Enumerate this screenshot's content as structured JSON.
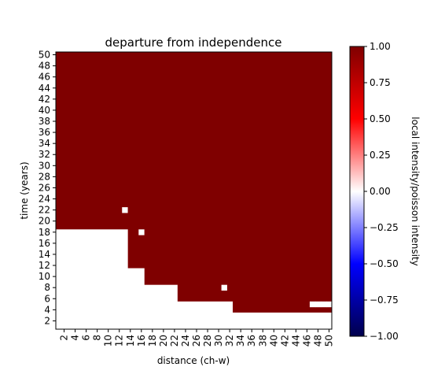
{
  "chart_data": {
    "type": "heatmap",
    "title": "departure from independence",
    "xlabel": "distance (ch-w)",
    "ylabel": "time (years)",
    "x_ticks": [
      2,
      4,
      6,
      8,
      10,
      12,
      14,
      16,
      18,
      20,
      22,
      24,
      26,
      28,
      30,
      32,
      34,
      36,
      38,
      40,
      42,
      44,
      46,
      48,
      50
    ],
    "y_ticks": [
      2,
      4,
      6,
      8,
      10,
      12,
      14,
      16,
      18,
      20,
      22,
      24,
      26,
      28,
      30,
      32,
      34,
      36,
      38,
      40,
      42,
      44,
      46,
      48,
      50
    ],
    "x_range": [
      1,
      51
    ],
    "y_range": [
      1,
      51
    ],
    "grid": false,
    "colorbar": {
      "label": "local intensity/poisson intensity",
      "range": [
        -1.0,
        1.0
      ],
      "ticks": [
        "1.00",
        "0.75",
        "0.50",
        "0.25",
        "0.00",
        "−0.25",
        "−0.50",
        "−0.75",
        "−1.00"
      ],
      "colormap": "seismic",
      "low_color": "#00004c",
      "mid_color": "#ffffff",
      "high_color": "#7f0000"
    },
    "regions": {
      "high_value": 1.0,
      "low_value": 0.0,
      "boundary_note": "cells at or above the boundary time for a given distance have value 1.0; cells below have value 0.0",
      "boundary_by_distance": [
        {
          "distance_from": 1,
          "distance_to": 13,
          "low_time_to": 18
        },
        {
          "distance_from": 14,
          "distance_to": 16,
          "low_time_to": 11
        },
        {
          "distance_from": 17,
          "distance_to": 22,
          "low_time_to": 8
        },
        {
          "distance_from": 23,
          "distance_to": 32,
          "low_time_to": 5
        },
        {
          "distance_from": 33,
          "distance_to": 50,
          "low_time_to": 3
        }
      ],
      "isolated_low_cells": [
        {
          "distance": 13,
          "time": 22
        },
        {
          "distance": 16,
          "time": 18
        },
        {
          "distance": 31,
          "time": 8
        },
        {
          "distance": 47,
          "time": 5
        },
        {
          "distance": 48,
          "time": 5
        },
        {
          "distance": 49,
          "time": 5
        },
        {
          "distance": 50,
          "time": 5
        }
      ]
    }
  }
}
